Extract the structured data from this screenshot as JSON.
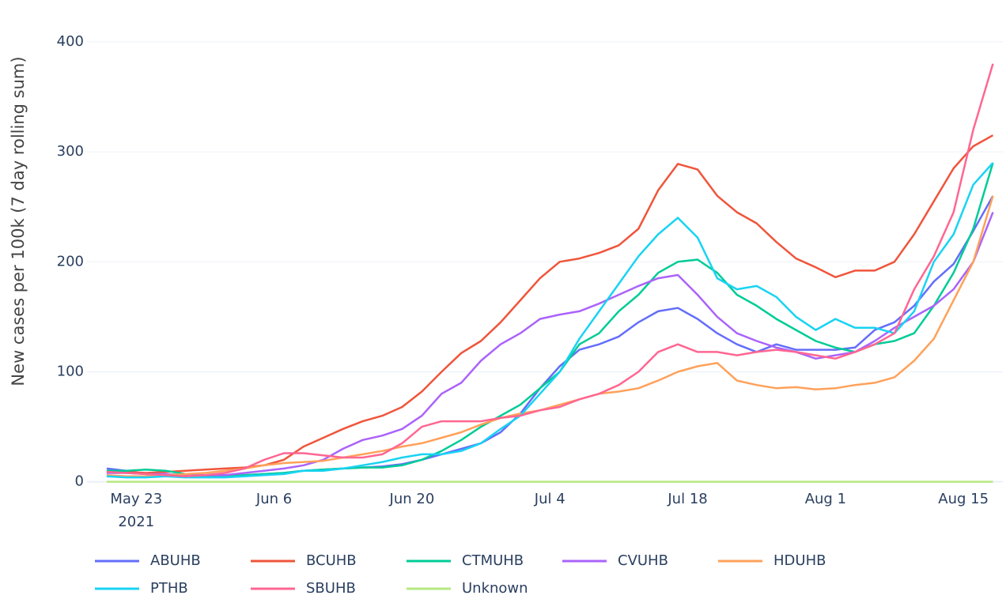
{
  "chart_data": {
    "type": "line",
    "y_label": "New cases per 100k (7 day rolling sum)",
    "x": [
      "2021-05-20",
      "2021-05-22",
      "2021-05-24",
      "2021-05-26",
      "2021-05-28",
      "2021-05-30",
      "2021-06-01",
      "2021-06-03",
      "2021-06-05",
      "2021-06-07",
      "2021-06-09",
      "2021-06-11",
      "2021-06-13",
      "2021-06-15",
      "2021-06-17",
      "2021-06-19",
      "2021-06-21",
      "2021-06-23",
      "2021-06-25",
      "2021-06-27",
      "2021-06-29",
      "2021-07-01",
      "2021-07-03",
      "2021-07-05",
      "2021-07-07",
      "2021-07-09",
      "2021-07-11",
      "2021-07-13",
      "2021-07-15",
      "2021-07-17",
      "2021-07-19",
      "2021-07-21",
      "2021-07-23",
      "2021-07-25",
      "2021-07-27",
      "2021-07-29",
      "2021-07-31",
      "2021-08-02",
      "2021-08-04",
      "2021-08-06",
      "2021-08-08",
      "2021-08-10",
      "2021-08-12",
      "2021-08-14",
      "2021-08-16",
      "2021-08-18"
    ],
    "xlim": [
      "2021-05-18",
      "2021-08-19"
    ],
    "xticks": [
      {
        "value": "2021-05-23",
        "label": "May 23"
      },
      {
        "value": "2021-06-06",
        "label": "Jun 6"
      },
      {
        "value": "2021-06-20",
        "label": "Jun 20"
      },
      {
        "value": "2021-07-04",
        "label": "Jul 4"
      },
      {
        "value": "2021-07-18",
        "label": "Jul 18"
      },
      {
        "value": "2021-08-01",
        "label": "Aug 1"
      },
      {
        "value": "2021-08-15",
        "label": "Aug 15"
      }
    ],
    "xtick_year": "2021",
    "ylim": [
      -6,
      438
    ],
    "yticks": [
      0,
      100,
      200,
      300,
      400
    ],
    "grid": true,
    "series": [
      {
        "name": "ABUHB",
        "color": "#636efa",
        "values": [
          12,
          10,
          7,
          6,
          5,
          5,
          5,
          6,
          7,
          8,
          10,
          11,
          12,
          13,
          14,
          16,
          20,
          25,
          30,
          35,
          45,
          62,
          85,
          105,
          120,
          125,
          132,
          145,
          155,
          158,
          148,
          135,
          125,
          118,
          125,
          120,
          120,
          120,
          122,
          138,
          145,
          160,
          182,
          198,
          228,
          260
        ]
      },
      {
        "name": "BCUHB",
        "color": "#ef553b",
        "values": [
          10,
          9,
          8,
          9,
          10,
          11,
          12,
          13,
          15,
          20,
          32,
          40,
          48,
          55,
          60,
          68,
          82,
          100,
          117,
          128,
          145,
          165,
          185,
          200,
          203,
          208,
          215,
          230,
          265,
          289,
          284,
          260,
          245,
          235,
          218,
          203,
          195,
          186,
          192,
          192,
          200,
          225,
          255,
          285,
          305,
          315
        ]
      },
      {
        "name": "CTMUHB",
        "color": "#00cc96",
        "values": [
          10,
          10,
          11,
          10,
          7,
          6,
          5,
          6,
          7,
          8,
          10,
          11,
          12,
          13,
          13,
          15,
          20,
          28,
          38,
          50,
          60,
          70,
          85,
          100,
          125,
          135,
          155,
          170,
          190,
          200,
          202,
          190,
          170,
          160,
          148,
          138,
          128,
          122,
          118,
          125,
          128,
          135,
          160,
          190,
          230,
          290
        ]
      },
      {
        "name": "CVUHB",
        "color": "#ab63fa",
        "values": [
          8,
          8,
          7,
          7,
          6,
          6,
          6,
          8,
          10,
          12,
          15,
          20,
          30,
          38,
          42,
          48,
          60,
          80,
          90,
          110,
          125,
          135,
          148,
          152,
          155,
          162,
          170,
          178,
          185,
          188,
          170,
          150,
          135,
          128,
          122,
          118,
          112,
          115,
          118,
          128,
          140,
          150,
          160,
          175,
          200,
          245
        ]
      },
      {
        "name": "HDUHB",
        "color": "#ffa15a",
        "values": [
          6,
          5,
          5,
          6,
          7,
          8,
          10,
          12,
          15,
          17,
          18,
          19,
          22,
          25,
          28,
          32,
          35,
          40,
          45,
          52,
          58,
          62,
          65,
          70,
          75,
          80,
          82,
          85,
          92,
          100,
          105,
          108,
          92,
          88,
          85,
          86,
          84,
          85,
          88,
          90,
          95,
          110,
          130,
          165,
          200,
          260
        ]
      },
      {
        "name": "PTHB",
        "color": "#19d3f3",
        "values": [
          5,
          4,
          4,
          5,
          4,
          4,
          4,
          5,
          6,
          7,
          10,
          10,
          12,
          15,
          18,
          22,
          25,
          25,
          28,
          35,
          48,
          60,
          80,
          100,
          130,
          155,
          180,
          205,
          225,
          240,
          222,
          185,
          175,
          178,
          168,
          150,
          138,
          148,
          140,
          140,
          135,
          155,
          200,
          225,
          270,
          290
        ]
      },
      {
        "name": "SBUHB",
        "color": "#ff6692",
        "values": [
          9,
          8,
          7,
          6,
          5,
          6,
          8,
          12,
          20,
          26,
          26,
          24,
          22,
          22,
          25,
          35,
          50,
          55,
          55,
          55,
          58,
          60,
          65,
          68,
          75,
          80,
          88,
          100,
          118,
          125,
          118,
          118,
          115,
          118,
          120,
          118,
          115,
          112,
          118,
          125,
          135,
          175,
          205,
          245,
          320,
          380
        ]
      },
      {
        "name": "Unknown",
        "color": "#b6e880",
        "values": [
          0,
          0,
          0,
          0,
          0,
          0,
          0,
          0,
          0,
          0,
          0,
          0,
          0,
          0,
          0,
          0,
          0,
          0,
          0,
          0,
          0,
          0,
          0,
          0,
          0,
          0,
          0,
          0,
          0,
          0,
          0,
          0,
          0,
          0,
          0,
          0,
          0,
          0,
          0,
          0,
          0,
          0,
          0,
          0,
          0,
          0
        ]
      }
    ]
  }
}
